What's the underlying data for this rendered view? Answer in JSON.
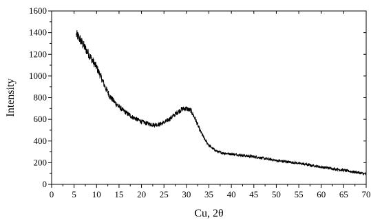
{
  "chart_data": {
    "type": "line",
    "title": "",
    "xlabel": "Cu, 2θ",
    "ylabel": "Intensity",
    "xlim": [
      0,
      70
    ],
    "ylim": [
      0,
      1600
    ],
    "x_ticks": [
      "0",
      "5",
      "10",
      "15",
      "20",
      "25",
      "30",
      "35",
      "40",
      "45",
      "50",
      "55",
      "60",
      "65",
      "70"
    ],
    "y_ticks": [
      "0",
      "200",
      "400",
      "600",
      "800",
      "1000",
      "1200",
      "1400",
      "1600"
    ],
    "grid": false,
    "legend": "none",
    "line_color": "#000000",
    "series": [
      {
        "x": [
          5.5,
          6,
          7,
          8,
          9,
          10,
          11,
          12,
          13,
          14,
          15,
          16,
          17,
          18,
          19,
          20,
          21,
          22,
          23,
          24,
          25,
          26,
          27,
          28,
          29,
          30,
          31,
          32,
          33,
          34,
          35,
          36,
          37,
          38,
          39,
          40,
          42,
          45,
          48,
          50,
          55,
          60,
          65,
          68,
          70
        ],
        "values": [
          1380,
          1360,
          1290,
          1220,
          1150,
          1080,
          990,
          890,
          810,
          760,
          715,
          680,
          650,
          620,
          600,
          580,
          565,
          555,
          550,
          555,
          570,
          595,
          630,
          665,
          695,
          700,
          680,
          600,
          500,
          420,
          360,
          325,
          300,
          290,
          285,
          280,
          270,
          255,
          235,
          220,
          195,
          160,
          130,
          110,
          95
        ]
      }
    ]
  }
}
